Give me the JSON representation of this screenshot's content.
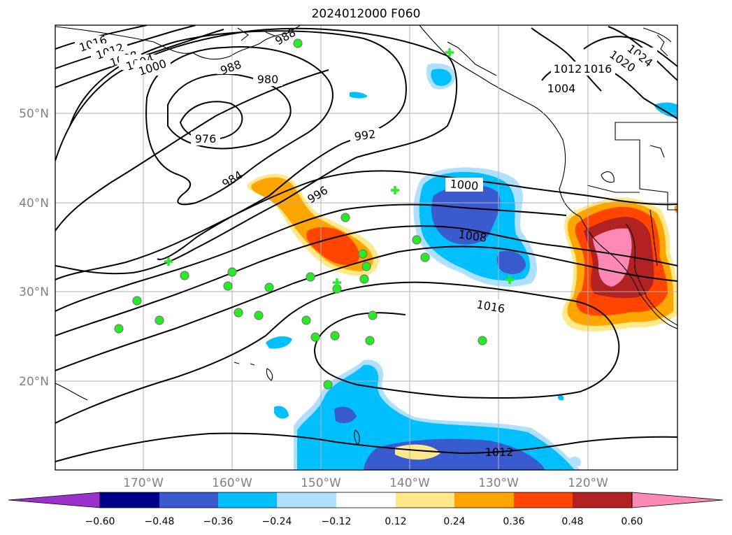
{
  "title": "2024012000 F060",
  "axes": {
    "lat_labels": [
      "50°N",
      "40°N",
      "30°N",
      "20°N"
    ],
    "lon_labels": [
      "170°W",
      "160°W",
      "150°W",
      "140°W",
      "130°W",
      "120°W"
    ]
  },
  "isobar_labels": [
    "1016",
    "1012",
    "1008",
    "1004",
    "1000",
    "988",
    "988",
    "980",
    "976",
    "992",
    "984",
    "996",
    "1000",
    "1008",
    "1016",
    "1012",
    "1024",
    "1020",
    "1016",
    "1012",
    "1004"
  ],
  "colorbar": {
    "ticks": [
      "−0.60",
      "−0.48",
      "−0.36",
      "−0.24",
      "−0.12",
      "0.12",
      "0.24",
      "0.36",
      "0.48",
      "0.60"
    ],
    "colors": [
      "#9932cc",
      "#00008b",
      "#3a5bd0",
      "#00bfff",
      "#b0e0ff",
      "#ffffff",
      "#ffe88a",
      "#ffa500",
      "#ff4500",
      "#b22222",
      "#ff88b4"
    ]
  },
  "palette": {
    "neg_light": "#b0e0ff",
    "neg_mid": "#00bfff",
    "neg_dark": "#3a5bd0",
    "pos_light": "#ffe88a",
    "pos_mid": "#ffa500",
    "pos_strong": "#ff4500",
    "pos_dark": "#b22222",
    "pos_peak": "#ff88b4",
    "marker": "#22ee22",
    "grid": "#b0b0b0"
  }
}
